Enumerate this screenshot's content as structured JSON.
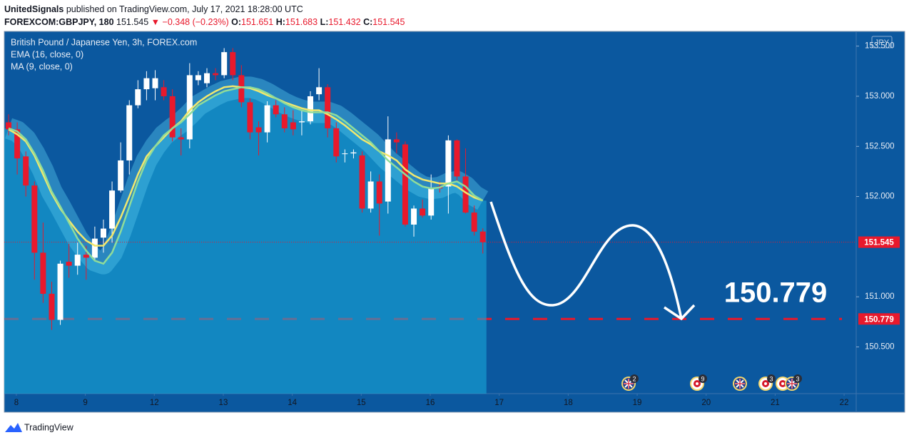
{
  "header": {
    "author": "UnitedSignals",
    "published": "published on TradingView.com, July 17, 2021 18:28:00 UTC",
    "symbol": "FOREXCOM:GBPJPY, 180",
    "last": "151.545",
    "arrow": "▼",
    "change": "−0.348 (−0.23%)",
    "o_label": "O:",
    "o": "151.651",
    "h_label": "H:",
    "h": "151.683",
    "l_label": "L:",
    "l": "151.432",
    "c_label": "C:",
    "c": "151.545"
  },
  "footer": {
    "brand": "TradingView"
  },
  "chart_data": {
    "type": "candlestick",
    "title": "British Pound / Japanese Yen, 3h, FOREX.com",
    "currency": "JPY",
    "open": [
      152.74,
      152.67,
      152.4,
      152.11,
      151.44,
      151.03,
      150.77,
      151.35,
      151.31,
      151.42,
      151.39,
      151.59,
      151.68,
      152.06,
      152.36,
      152.91,
      153.07,
      153.08,
      153.09,
      153.0,
      152.59,
      152.57,
      153.16,
      153.13,
      153.23,
      153.21,
      153.44,
      153.21,
      152.94,
      152.69,
      152.64,
      152.91,
      152.82,
      152.74,
      152.74,
      152.75,
      153.02,
      153.09,
      152.68,
      152.43,
      152.43,
      152.41,
      151.88,
      152.15,
      151.95,
      152.57,
      152.52,
      151.72,
      151.88,
      151.81,
      152.1,
      152.1,
      152.56,
      152.2,
      151.84,
      151.651
    ],
    "high": [
      152.82,
      152.74,
      152.45,
      152.15,
      151.74,
      151.15,
      151.36,
      151.53,
      151.54,
      151.51,
      151.7,
      151.77,
      152.15,
      152.54,
      152.96,
      153.16,
      153.25,
      153.26,
      153.16,
      153.07,
      152.68,
      153.33,
      153.25,
      153.28,
      153.28,
      153.48,
      153.48,
      153.31,
      152.98,
      152.75,
      152.95,
      152.96,
      152.89,
      152.86,
      152.86,
      153.05,
      153.28,
      153.12,
      152.74,
      152.47,
      152.47,
      152.45,
      152.25,
      152.22,
      152.8,
      152.64,
      152.55,
      151.91,
      151.97,
      152.22,
      152.15,
      152.61,
      152.57,
      152.48,
      151.91,
      151.683
    ],
    "low": [
      152.61,
      152.22,
      152.0,
      151.17,
      150.94,
      150.67,
      150.72,
      151.19,
      151.22,
      151.17,
      151.36,
      151.44,
      151.54,
      152.04,
      152.22,
      152.88,
      152.96,
      152.96,
      152.96,
      152.55,
      152.41,
      152.48,
      153.11,
      153.09,
      153.16,
      153.18,
      153.16,
      152.89,
      152.57,
      152.41,
      152.54,
      152.79,
      152.64,
      152.61,
      152.61,
      152.72,
      152.96,
      152.59,
      152.34,
      152.34,
      152.38,
      151.84,
      151.84,
      151.61,
      151.83,
      152.43,
      151.7,
      151.6,
      151.79,
      151.77,
      152.04,
      151.83,
      152.15,
      151.83,
      151.61,
      151.432
    ],
    "close": [
      152.67,
      152.38,
      152.11,
      151.44,
      151.03,
      150.77,
      151.33,
      151.31,
      151.42,
      151.39,
      151.58,
      151.68,
      152.06,
      152.36,
      152.91,
      153.07,
      153.18,
      153.18,
      153.0,
      152.59,
      152.57,
      153.21,
      153.21,
      153.23,
      153.21,
      153.44,
      153.21,
      152.94,
      152.64,
      152.64,
      152.91,
      152.82,
      152.68,
      152.67,
      152.75,
      153.0,
      153.09,
      152.68,
      152.4,
      152.43,
      152.44,
      151.88,
      152.15,
      151.93,
      152.57,
      152.54,
      151.72,
      151.88,
      151.81,
      152.08,
      152.08,
      152.56,
      152.2,
      151.84,
      151.65,
      151.545
    ],
    "up_color": "#ffffff",
    "down_color": "#e8192c",
    "series": [
      {
        "name": "EMA (16, close, 0)",
        "color": "#f2e86d",
        "values": [
          152.67,
          152.62,
          152.55,
          152.41,
          152.22,
          152.03,
          151.88,
          151.76,
          151.65,
          151.56,
          151.51,
          151.51,
          151.61,
          151.79,
          152.0,
          152.22,
          152.4,
          152.5,
          152.59,
          152.68,
          152.75,
          152.86,
          152.94,
          153.0,
          153.05,
          153.09,
          153.1,
          153.09,
          153.08,
          153.05,
          153.01,
          152.98,
          152.94,
          152.91,
          152.88,
          152.86,
          152.86,
          152.82,
          152.77,
          152.71,
          152.64,
          152.57,
          152.52,
          152.45,
          152.41,
          152.36,
          152.27,
          152.21,
          152.17,
          152.15,
          152.13,
          152.13,
          152.1,
          152.04,
          151.99,
          151.96
        ]
      },
      {
        "name": "MA (9, close, 0)",
        "color": "#8fdc9a",
        "values": [
          152.68,
          152.65,
          152.57,
          152.43,
          152.26,
          152.05,
          151.9,
          151.74,
          151.58,
          151.46,
          151.36,
          151.33,
          151.44,
          151.65,
          151.9,
          152.15,
          152.36,
          152.5,
          152.61,
          152.68,
          152.74,
          152.82,
          152.91,
          152.96,
          153.01,
          153.05,
          153.07,
          153.09,
          153.09,
          153.07,
          153.03,
          152.98,
          152.93,
          152.89,
          152.86,
          152.84,
          152.84,
          152.84,
          152.81,
          152.75,
          152.68,
          152.61,
          152.54,
          152.45,
          152.36,
          152.29,
          152.22,
          152.15,
          152.1,
          152.08,
          152.09,
          152.13,
          152.15,
          152.1,
          152.01,
          151.96
        ]
      }
    ],
    "price_line": 151.545,
    "target_line": 150.779,
    "xlim": [
      -0.5,
      98.3
    ],
    "xticks": [
      {
        "value": 0.9,
        "label": "8"
      },
      {
        "value": 8.9,
        "label": "9"
      },
      {
        "value": 16.9,
        "label": "12"
      },
      {
        "value": 24.9,
        "label": "13"
      },
      {
        "value": 32.9,
        "label": "14"
      },
      {
        "value": 40.9,
        "label": "15"
      },
      {
        "value": 48.9,
        "label": "16"
      },
      {
        "value": 56.9,
        "label": "17"
      },
      {
        "value": 64.9,
        "label": "18"
      },
      {
        "value": 72.9,
        "label": "19"
      },
      {
        "value": 80.9,
        "label": "20"
      },
      {
        "value": 88.9,
        "label": "21"
      },
      {
        "value": 96.9,
        "label": "22"
      }
    ],
    "ylim": [
      150.034,
      153.647
    ],
    "yticks": [
      {
        "value": 150.5,
        "label": "150.500"
      },
      {
        "value": 151,
        "label": "151.000"
      },
      {
        "value": 152,
        "label": "152.000"
      },
      {
        "value": 152.5,
        "label": "152.500"
      },
      {
        "value": 153,
        "label": "153.000"
      },
      {
        "value": 153.5,
        "label": "153.500"
      }
    ],
    "events": [
      "2",
      "9",
      "3",
      "3"
    ]
  }
}
